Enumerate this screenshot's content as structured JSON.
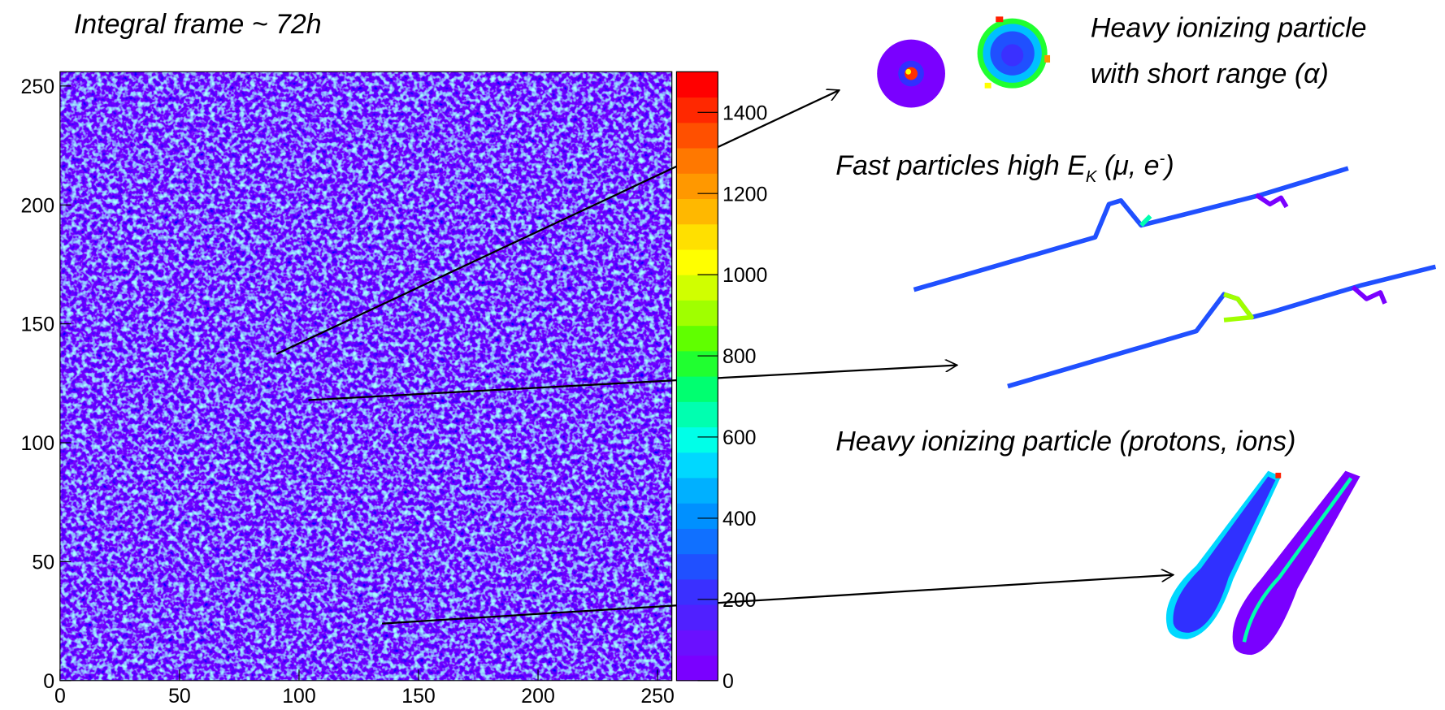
{
  "chart_data": {
    "type": "heatmap",
    "title": "Integral frame ~ 72h",
    "xlim": [
      0,
      256
    ],
    "xticks": [
      0,
      50,
      100,
      150,
      200,
      250
    ],
    "ylim": [
      0,
      256
    ],
    "yticks": [
      0,
      50,
      100,
      150,
      200,
      250
    ],
    "zlim": [
      0,
      1500
    ],
    "zticks": [
      0,
      200,
      400,
      600,
      800,
      1000,
      1200,
      1400
    ],
    "palette": [
      "#7a00ff",
      "#6a10ff",
      "#5020ff",
      "#3a30ff",
      "#2050ff",
      "#1070ff",
      "#0090ff",
      "#00b0ff",
      "#00d8ff",
      "#00ffe8",
      "#00ffb0",
      "#00ff70",
      "#20ff30",
      "#60ff00",
      "#a0ff00",
      "#d0ff00",
      "#ffff00",
      "#ffe000",
      "#ffb800",
      "#ff9800",
      "#ff7800",
      "#ff5000",
      "#ff2800",
      "#ff0000"
    ]
  },
  "annotations": {
    "alpha": [
      "Heavy ionizing particle",
      "with short range (α)"
    ],
    "fast": [
      "Fast particles high E",
      "K",
      " (μ, e",
      "-",
      ")"
    ],
    "heavy": "Heavy ionizing particle (protons, ions)"
  }
}
